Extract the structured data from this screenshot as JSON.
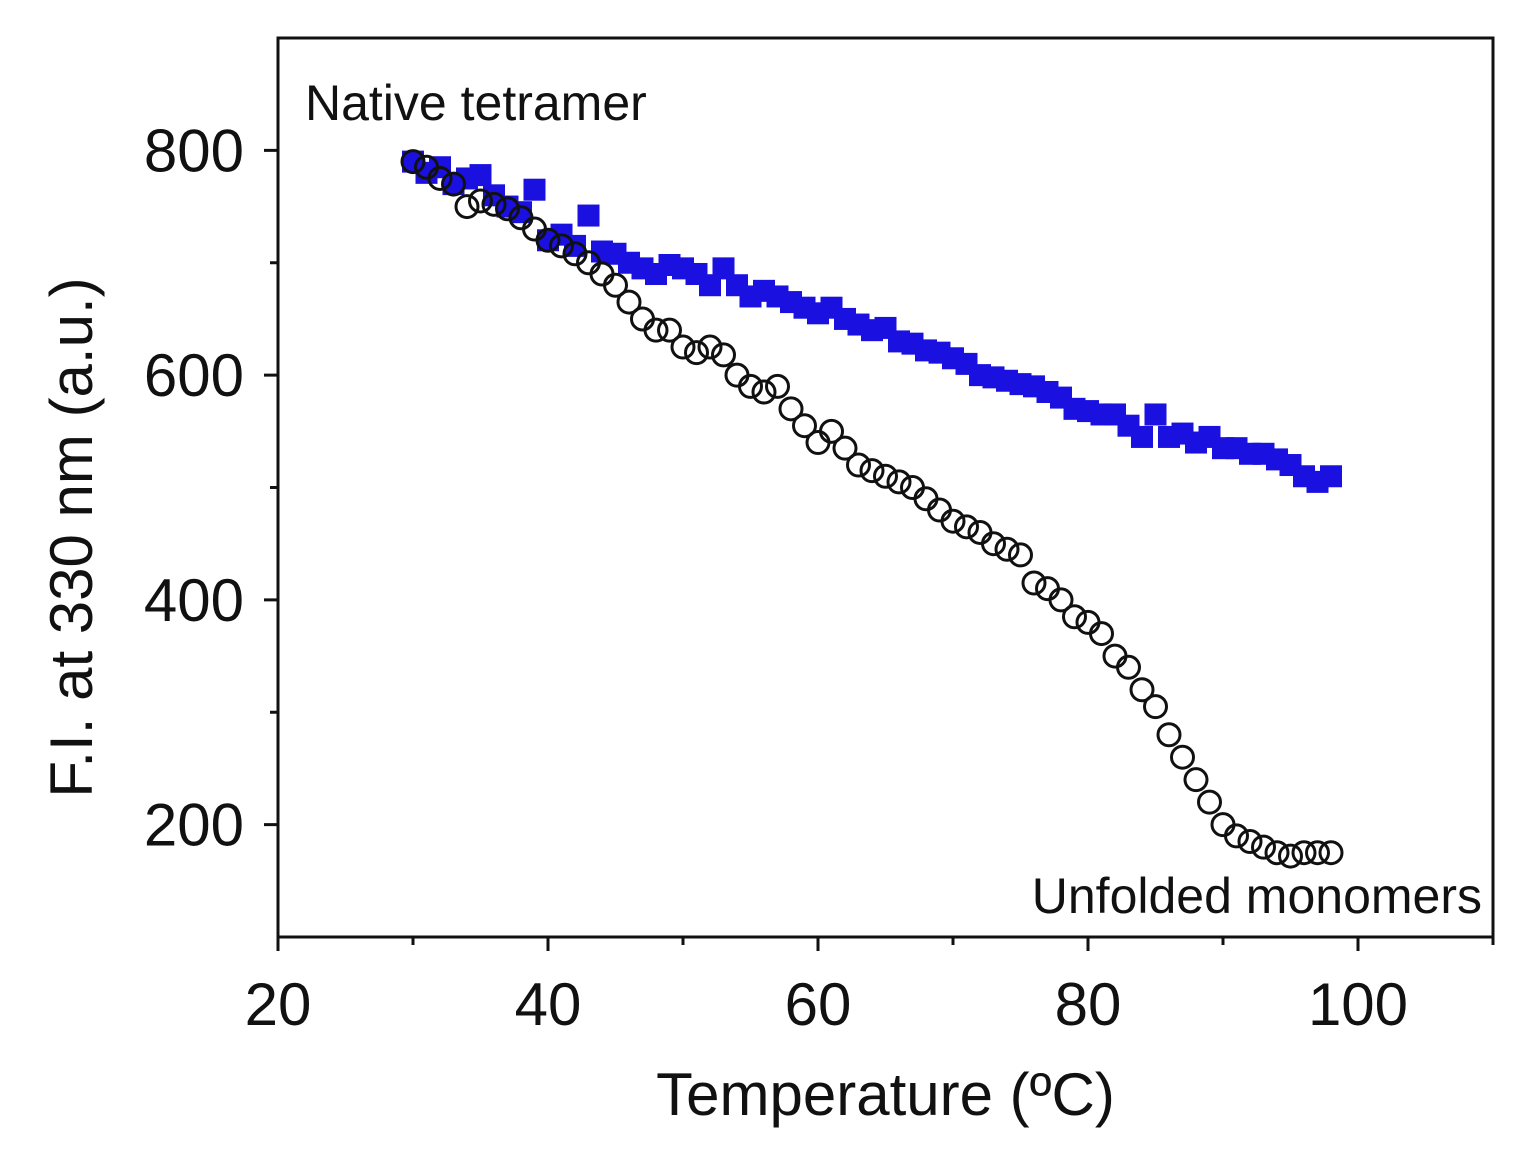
{
  "chart_data": {
    "type": "scatter",
    "title": "",
    "xlabel": "Temperature (ºC)",
    "ylabel": "F.I. at 330 nm (a.u.)",
    "xlim": [
      20,
      110
    ],
    "ylim": [
      100,
      900
    ],
    "x_ticks": [
      20,
      40,
      60,
      80,
      100
    ],
    "x_minor_ticks": [
      30,
      50,
      70,
      90,
      110
    ],
    "y_ticks": [
      200,
      400,
      600,
      800
    ],
    "y_minor_ticks": [
      300,
      500,
      700
    ],
    "grid": false,
    "colors": {
      "axis": "#111111",
      "native_series": "#1a10e0",
      "unfolded_series": "#111111"
    },
    "series": [
      {
        "name": "Native tetramer",
        "marker": "square",
        "x": [
          30,
          31,
          32,
          33,
          34,
          35,
          36,
          37,
          38,
          39,
          40,
          41,
          42,
          43,
          44,
          45,
          46,
          47,
          48,
          49,
          50,
          51,
          52,
          53,
          54,
          55,
          56,
          57,
          58,
          59,
          60,
          61,
          62,
          63,
          64,
          65,
          66,
          67,
          68,
          69,
          70,
          71,
          72,
          73,
          74,
          75,
          76,
          77,
          78,
          79,
          80,
          81,
          82,
          83,
          84,
          85,
          86,
          87,
          88,
          89,
          90,
          91,
          92,
          93,
          94,
          95,
          96,
          97,
          98
        ],
        "y": [
          790,
          780,
          785,
          770,
          775,
          778,
          760,
          750,
          745,
          765,
          720,
          725,
          715,
          742,
          710,
          708,
          700,
          695,
          690,
          698,
          695,
          690,
          680,
          695,
          680,
          670,
          675,
          670,
          665,
          660,
          655,
          660,
          650,
          645,
          640,
          642,
          630,
          628,
          622,
          620,
          615,
          610,
          600,
          598,
          595,
          592,
          590,
          585,
          580,
          570,
          568,
          565,
          565,
          555,
          545,
          565,
          545,
          548,
          540,
          545,
          535,
          535,
          530,
          530,
          525,
          520,
          510,
          505,
          510
        ]
      },
      {
        "name": "Unfolded monomers",
        "marker": "circle",
        "x": [
          30,
          31,
          32,
          33,
          34,
          35,
          36,
          37,
          38,
          39,
          40,
          41,
          42,
          43,
          44,
          45,
          46,
          47,
          48,
          49,
          50,
          51,
          52,
          53,
          54,
          55,
          56,
          57,
          58,
          59,
          60,
          61,
          62,
          63,
          64,
          65,
          66,
          67,
          68,
          69,
          70,
          71,
          72,
          73,
          74,
          75,
          76,
          77,
          78,
          79,
          80,
          81,
          82,
          83,
          84,
          85,
          86,
          87,
          88,
          89,
          90,
          91,
          92,
          93,
          94,
          95,
          96,
          97,
          98
        ],
        "y": [
          790,
          785,
          775,
          770,
          750,
          755,
          752,
          748,
          740,
          730,
          720,
          715,
          708,
          700,
          690,
          680,
          665,
          650,
          640,
          640,
          625,
          620,
          625,
          618,
          600,
          590,
          585,
          590,
          570,
          555,
          540,
          550,
          535,
          520,
          515,
          510,
          505,
          500,
          490,
          480,
          470,
          465,
          460,
          450,
          445,
          440,
          415,
          410,
          400,
          385,
          380,
          370,
          350,
          340,
          320,
          305,
          280,
          260,
          240,
          220,
          200,
          190,
          185,
          180,
          175,
          172,
          175,
          175,
          175
        ]
      }
    ],
    "annotations": [
      {
        "text": "Native tetramer",
        "location": "top-left"
      },
      {
        "text": "Unfolded monomers",
        "location": "bottom-right"
      }
    ]
  }
}
